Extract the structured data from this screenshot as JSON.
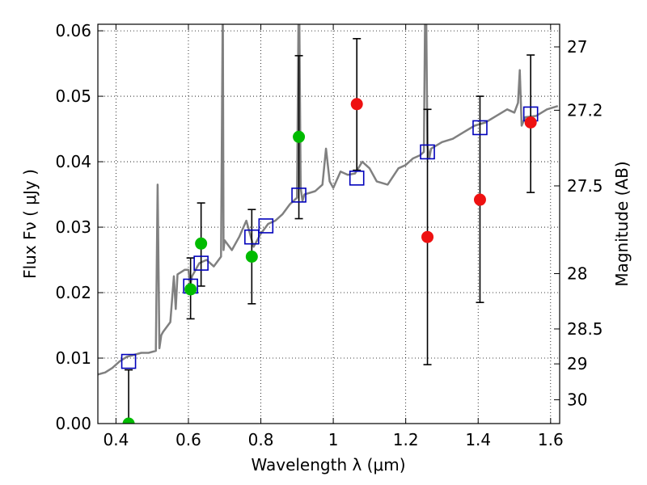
{
  "chart_data": {
    "type": "scatter",
    "title": "",
    "xlabel": "Wavelength  λ (μm)",
    "ylabel": "Flux  Fν  ( μJy )",
    "y2label": "Magnitude (AB)",
    "xlim": [
      0.35,
      1.625
    ],
    "ylim": [
      0.0,
      0.061
    ],
    "grid": true,
    "x_ticks": [
      0.4,
      0.6,
      0.8,
      1.0,
      1.2,
      1.4,
      1.6
    ],
    "x_tick_labels": [
      "0.4",
      "0.6",
      "0.8",
      "1",
      "1.2",
      "1.4",
      "1.6"
    ],
    "y_ticks": [
      0.0,
      0.01,
      0.02,
      0.03,
      0.04,
      0.05,
      0.06
    ],
    "y_tick_labels": [
      "0.00",
      "0.01",
      "0.02",
      "0.03",
      "0.04",
      "0.05",
      "0.06"
    ],
    "y2_ticks": [
      27,
      27.2,
      27.5,
      28,
      28.5,
      29,
      30
    ],
    "y2_tick_labels": [
      "27",
      "27.2",
      "27.5",
      "28",
      "28.5",
      "29",
      "30"
    ],
    "colors": {
      "model": "#808080",
      "model_photometry": "#0000bb",
      "optical": "#00bb00",
      "nir": "#ee1111",
      "errorbar": "#000000"
    },
    "series": [
      {
        "kind": "line",
        "x": [
          0.35,
          0.37,
          0.39,
          0.41,
          0.43,
          0.45,
          0.47,
          0.49,
          0.51,
          0.515,
          0.52,
          0.525,
          0.53,
          0.55,
          0.56,
          0.565,
          0.57,
          0.59,
          0.6,
          0.605,
          0.61,
          0.63,
          0.65,
          0.67,
          0.69,
          0.695,
          0.697,
          0.7,
          0.72,
          0.74,
          0.76,
          0.78,
          0.8,
          0.82,
          0.84,
          0.86,
          0.88,
          0.9,
          0.905,
          0.91,
          0.915,
          0.92,
          0.95,
          0.97,
          0.98,
          0.99,
          1.0,
          1.02,
          1.04,
          1.06,
          1.08,
          1.1,
          1.12,
          1.15,
          1.18,
          1.2,
          1.22,
          1.24,
          1.25,
          1.255,
          1.26,
          1.265,
          1.27,
          1.3,
          1.33,
          1.36,
          1.39,
          1.42,
          1.45,
          1.48,
          1.5,
          1.51,
          1.515,
          1.52,
          1.53,
          1.56,
          1.59,
          1.62
        ],
        "y": [
          0.0075,
          0.0078,
          0.0085,
          0.0095,
          0.0102,
          0.0105,
          0.0108,
          0.0108,
          0.0111,
          0.0365,
          0.0115,
          0.0135,
          0.014,
          0.0155,
          0.0225,
          0.0175,
          0.0228,
          0.0235,
          0.0235,
          0.021,
          0.0225,
          0.0245,
          0.025,
          0.024,
          0.0255,
          0.065,
          0.0265,
          0.028,
          0.0265,
          0.0285,
          0.031,
          0.027,
          0.029,
          0.0305,
          0.031,
          0.032,
          0.0335,
          0.0345,
          0.07,
          0.036,
          0.034,
          0.035,
          0.0355,
          0.0365,
          0.042,
          0.037,
          0.036,
          0.0385,
          0.038,
          0.0382,
          0.04,
          0.039,
          0.037,
          0.0365,
          0.039,
          0.0395,
          0.0405,
          0.041,
          0.0415,
          0.072,
          0.0425,
          0.0405,
          0.042,
          0.043,
          0.0435,
          0.0445,
          0.0455,
          0.046,
          0.047,
          0.048,
          0.0475,
          0.049,
          0.054,
          0.0455,
          0.0468,
          0.047,
          0.048,
          0.0485
        ]
      },
      {
        "kind": "model-photometry",
        "x": [
          0.435,
          0.606,
          0.635,
          0.775,
          0.814,
          0.905,
          1.065,
          1.26,
          1.405,
          1.545
        ],
        "y": [
          0.0095,
          0.021,
          0.0245,
          0.0285,
          0.0302,
          0.0349,
          0.0375,
          0.0415,
          0.0452,
          0.0473
        ]
      },
      {
        "kind": "observed",
        "x": [
          0.435,
          0.606,
          0.635,
          0.775,
          0.905
        ],
        "y": [
          0.0,
          0.0205,
          0.0275,
          0.0255,
          0.0438
        ],
        "y_lo": [
          0.0,
          0.016,
          0.021,
          0.0183,
          0.0313
        ],
        "y_hi": [
          0.0082,
          0.0253,
          0.0337,
          0.0327,
          0.0562
        ]
      },
      {
        "kind": "observed",
        "x": [
          1.065,
          1.26,
          1.405,
          1.545
        ],
        "y": [
          0.0488,
          0.0285,
          0.0342,
          0.046
        ],
        "y_lo": [
          0.0387,
          0.009,
          0.0185,
          0.0353
        ],
        "y_hi": [
          0.0588,
          0.048,
          0.05,
          0.0563
        ]
      }
    ]
  }
}
